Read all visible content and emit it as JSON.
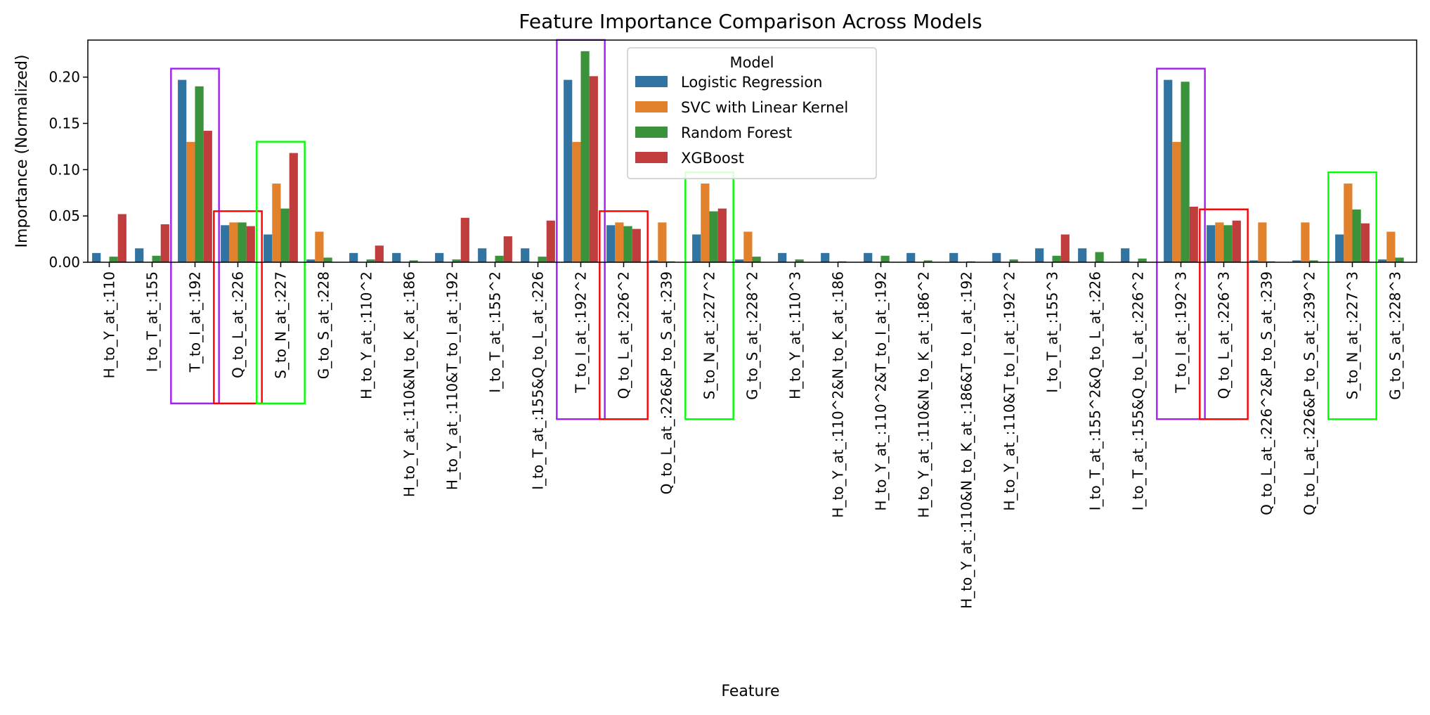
{
  "chart_data": {
    "type": "bar",
    "title": "Feature Importance Comparison Across Models",
    "xlabel": "Feature",
    "ylabel": "Importance (Normalized)",
    "ylim": [
      0,
      0.24
    ],
    "yticks": [
      "0.00",
      "0.05",
      "0.10",
      "0.15",
      "0.20"
    ],
    "grid": false,
    "legend": {
      "title": "Model",
      "placement": "top-center"
    },
    "categories": [
      "H_to_Y_at_:110",
      "I_to_T_at_:155",
      "T_to_I_at_:192",
      "Q_to_L_at_:226",
      "S_to_N_at_:227",
      "G_to_S_at_:228",
      "H_to_Y_at_:110^2",
      "H_to_Y_at_:110&N_to_K_at_:186",
      "H_to_Y_at_:110&T_to_I_at_:192",
      "I_to_T_at_:155^2",
      "I_to_T_at_:155&Q_to_L_at_:226",
      "T_to_I_at_:192^2",
      "Q_to_L_at_:226^2",
      "Q_to_L_at_:226&P_to_S_at_:239",
      "S_to_N_at_:227^2",
      "G_to_S_at_:228^2",
      "H_to_Y_at_:110^3",
      "H_to_Y_at_:110^2&N_to_K_at_:186",
      "H_to_Y_at_:110^2&T_to_I_at_:192",
      "H_to_Y_at_:110&N_to_K_at_:186^2",
      "H_to_Y_at_:110&N_to_K_at_:186&T_to_I_at_:192",
      "H_to_Y_at_:110&T_to_I_at_:192^2",
      "I_to_T_at_:155^3",
      "I_to_T_at_:155^2&Q_to_L_at_:226",
      "I_to_T_at_:155&Q_to_L_at_:226^2",
      "T_to_I_at_:192^3",
      "Q_to_L_at_:226^3",
      "Q_to_L_at_:226^2&P_to_S_at_:239",
      "Q_to_L_at_:226&P_to_S_at_:239^2",
      "S_to_N_at_:227^3",
      "G_to_S_at_:228^3"
    ],
    "series": [
      {
        "name": "Logistic Regression",
        "color": "#3274a1",
        "values": [
          0.01,
          0.015,
          0.197,
          0.04,
          0.03,
          0.003,
          0.01,
          0.01,
          0.01,
          0.015,
          0.015,
          0.197,
          0.04,
          0.002,
          0.03,
          0.003,
          0.01,
          0.01,
          0.01,
          0.01,
          0.01,
          0.01,
          0.015,
          0.015,
          0.015,
          0.197,
          0.04,
          0.002,
          0.002,
          0.03,
          0.003
        ]
      },
      {
        "name": "SVC with Linear Kernel",
        "color": "#e1812c",
        "values": [
          0.0,
          0.0,
          0.13,
          0.043,
          0.085,
          0.033,
          0.0,
          0.0,
          0.0,
          0.0,
          0.0,
          0.13,
          0.043,
          0.043,
          0.085,
          0.033,
          0.0,
          0.0,
          0.0,
          0.0,
          0.0,
          0.0,
          0.0,
          0.0,
          0.0,
          0.13,
          0.043,
          0.043,
          0.043,
          0.085,
          0.033
        ]
      },
      {
        "name": "Random Forest",
        "color": "#3a923a",
        "values": [
          0.006,
          0.007,
          0.19,
          0.043,
          0.058,
          0.005,
          0.003,
          0.002,
          0.003,
          0.007,
          0.006,
          0.228,
          0.039,
          0.001,
          0.055,
          0.006,
          0.003,
          0.001,
          0.007,
          0.002,
          0.001,
          0.003,
          0.007,
          0.011,
          0.004,
          0.195,
          0.04,
          0.001,
          0.002,
          0.057,
          0.005
        ]
      },
      {
        "name": "XGBoost",
        "color": "#c03d3e",
        "values": [
          0.052,
          0.041,
          0.142,
          0.039,
          0.118,
          0.0,
          0.018,
          0.0,
          0.048,
          0.028,
          0.045,
          0.201,
          0.036,
          0.0,
          0.058,
          0.0,
          0.0,
          0.0,
          0.0,
          0.0,
          0.0,
          0.0,
          0.03,
          0.0,
          0.0,
          0.06,
          0.045,
          0.0,
          0.0,
          0.042,
          0.0
        ]
      }
    ],
    "highlight_boxes": [
      {
        "category_index": 2,
        "color": "#a020f0"
      },
      {
        "category_index": 3,
        "color": "#ff0000"
      },
      {
        "category_index": 4,
        "color": "#00ff00"
      },
      {
        "category_index": 11,
        "color": "#a020f0"
      },
      {
        "category_index": 12,
        "color": "#ff0000"
      },
      {
        "category_index": 14,
        "color": "#00ff00"
      },
      {
        "category_index": 25,
        "color": "#a020f0"
      },
      {
        "category_index": 26,
        "color": "#ff0000"
      },
      {
        "category_index": 29,
        "color": "#00ff00"
      }
    ]
  }
}
